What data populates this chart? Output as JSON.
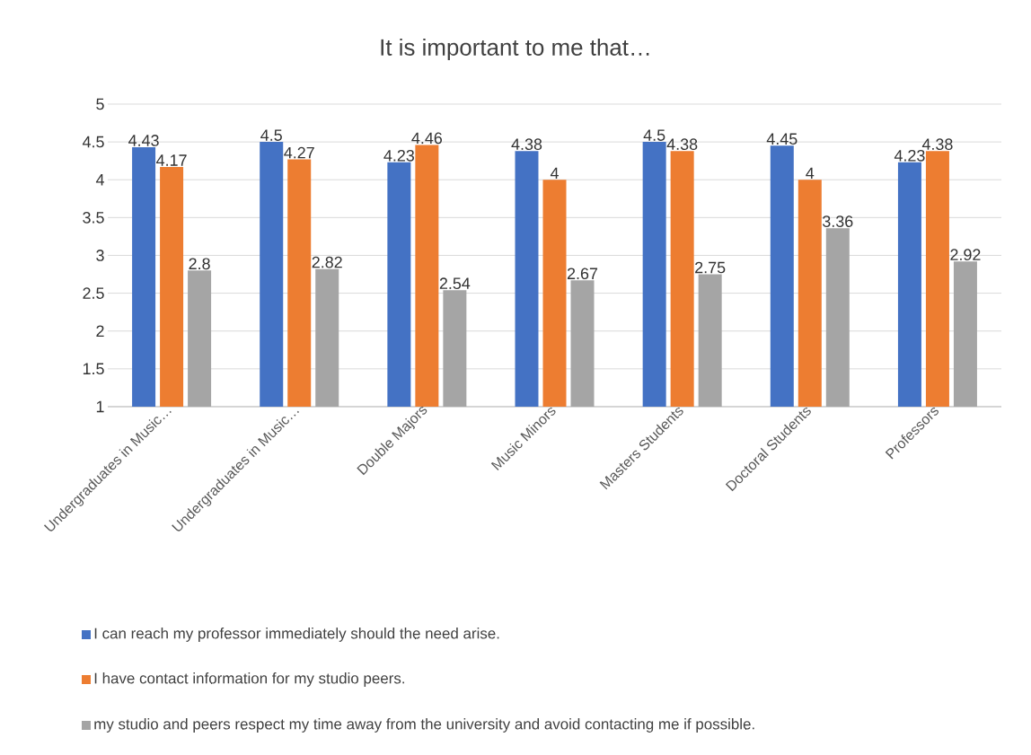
{
  "chart_data": {
    "type": "bar",
    "title": "It is important to me that…",
    "categories": [
      "Undergraduates in Music…",
      "Undergraduates in Music…",
      "Double Majors",
      "Music Minors",
      "Masters Students",
      "Doctoral Students",
      "Professors"
    ],
    "series": [
      {
        "name": "I  can reach my professor immediately should the need arise.",
        "color": "#4472c4",
        "values": [
          4.43,
          4.5,
          4.23,
          4.38,
          4.5,
          4.45,
          4.23
        ]
      },
      {
        "name": "I have contact information for my studio peers.",
        "color": "#ed7d31",
        "values": [
          4.17,
          4.27,
          4.46,
          4,
          4.38,
          4,
          4.38
        ]
      },
      {
        "name": "my studio and peers respect my time away from the university and avoid contacting me if possible.",
        "color": "#a5a5a5",
        "values": [
          2.8,
          2.82,
          2.54,
          2.67,
          2.75,
          3.36,
          2.92
        ]
      }
    ],
    "ylim": [
      1,
      5
    ],
    "yticks": [
      1,
      1.5,
      2,
      2.5,
      3,
      3.5,
      4,
      4.5,
      5
    ],
    "grid": "y",
    "legend": "bottom",
    "data_labels": true
  }
}
